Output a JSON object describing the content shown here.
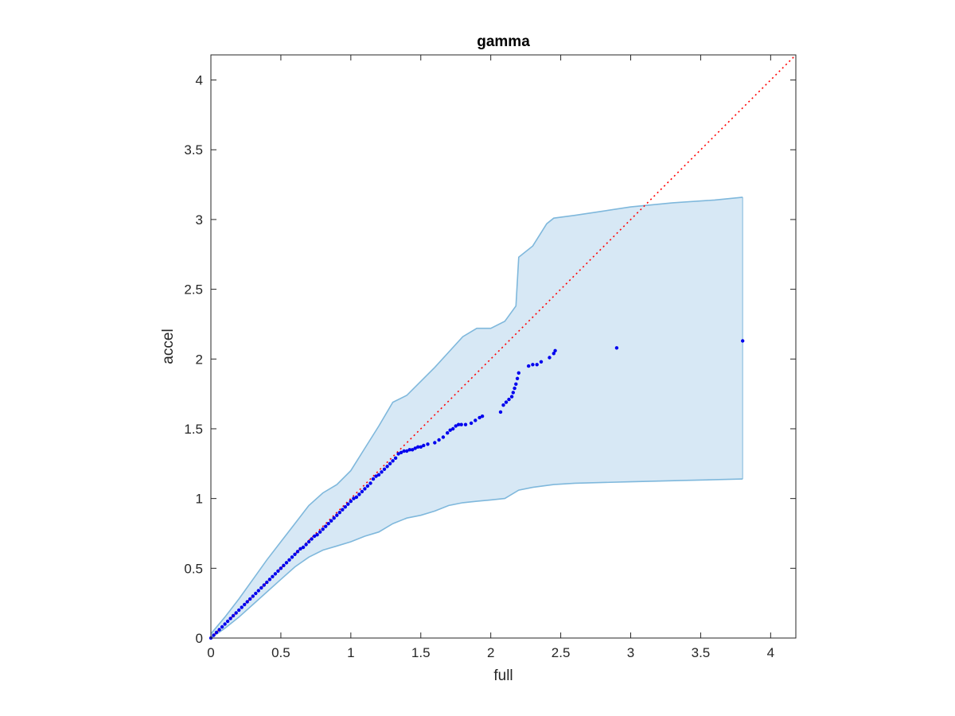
{
  "chart_data": {
    "type": "scatter",
    "title": "gamma",
    "xlabel": "full",
    "ylabel": "accel",
    "xlim": [
      0,
      4.18
    ],
    "ylim": [
      0,
      4.18
    ],
    "xticks": [
      0,
      0.5,
      1,
      1.5,
      2,
      2.5,
      3,
      3.5,
      4
    ],
    "yticks": [
      0,
      0.5,
      1,
      1.5,
      2,
      2.5,
      3,
      3.5,
      4
    ],
    "xtick_labels": [
      "0",
      "0.5",
      "1",
      "1.5",
      "2",
      "2.5",
      "3",
      "3.5",
      "4"
    ],
    "ytick_labels": [
      "0",
      "0.5",
      "1",
      "1.5",
      "2",
      "2.5",
      "3",
      "3.5",
      "4"
    ],
    "grid": false,
    "reference_line": {
      "style": "dotted",
      "color": "#ff0000",
      "x": [
        0,
        4.18
      ],
      "y": [
        0,
        4.18
      ]
    },
    "band": {
      "color": "#bcd9ee",
      "edge_color": "#7fb8dc",
      "upper": [
        [
          0,
          0.03
        ],
        [
          0.1,
          0.15
        ],
        [
          0.2,
          0.28
        ],
        [
          0.3,
          0.42
        ],
        [
          0.4,
          0.56
        ],
        [
          0.5,
          0.69
        ],
        [
          0.6,
          0.82
        ],
        [
          0.7,
          0.95
        ],
        [
          0.8,
          1.04
        ],
        [
          0.9,
          1.1
        ],
        [
          1.0,
          1.2
        ],
        [
          1.1,
          1.36
        ],
        [
          1.2,
          1.52
        ],
        [
          1.3,
          1.69
        ],
        [
          1.4,
          1.74
        ],
        [
          1.5,
          1.84
        ],
        [
          1.6,
          1.94
        ],
        [
          1.7,
          2.05
        ],
        [
          1.8,
          2.16
        ],
        [
          1.9,
          2.22
        ],
        [
          2.0,
          2.22
        ],
        [
          2.1,
          2.27
        ],
        [
          2.18,
          2.38
        ],
        [
          2.2,
          2.73
        ],
        [
          2.3,
          2.81
        ],
        [
          2.4,
          2.97
        ],
        [
          2.45,
          3.01
        ],
        [
          2.6,
          3.03
        ],
        [
          2.8,
          3.06
        ],
        [
          3.0,
          3.09
        ],
        [
          3.3,
          3.12
        ],
        [
          3.6,
          3.14
        ],
        [
          3.8,
          3.16
        ]
      ],
      "lower": [
        [
          0,
          0.0
        ],
        [
          0.1,
          0.07
        ],
        [
          0.2,
          0.15
        ],
        [
          0.3,
          0.24
        ],
        [
          0.4,
          0.33
        ],
        [
          0.5,
          0.42
        ],
        [
          0.6,
          0.51
        ],
        [
          0.7,
          0.58
        ],
        [
          0.8,
          0.63
        ],
        [
          0.9,
          0.66
        ],
        [
          1.0,
          0.69
        ],
        [
          1.1,
          0.73
        ],
        [
          1.2,
          0.76
        ],
        [
          1.3,
          0.82
        ],
        [
          1.4,
          0.86
        ],
        [
          1.5,
          0.88
        ],
        [
          1.6,
          0.91
        ],
        [
          1.7,
          0.95
        ],
        [
          1.8,
          0.97
        ],
        [
          1.9,
          0.98
        ],
        [
          2.0,
          0.99
        ],
        [
          2.1,
          1.0
        ],
        [
          2.2,
          1.06
        ],
        [
          2.3,
          1.08
        ],
        [
          2.45,
          1.1
        ],
        [
          2.6,
          1.11
        ],
        [
          3.0,
          1.12
        ],
        [
          3.4,
          1.13
        ],
        [
          3.8,
          1.14
        ]
      ]
    },
    "series": [
      {
        "color": "#0000ee",
        "x": [
          0.0,
          0.02,
          0.04,
          0.06,
          0.08,
          0.1,
          0.12,
          0.14,
          0.16,
          0.18,
          0.2,
          0.22,
          0.24,
          0.26,
          0.28,
          0.3,
          0.32,
          0.34,
          0.36,
          0.38,
          0.4,
          0.42,
          0.44,
          0.46,
          0.48,
          0.5,
          0.52,
          0.54,
          0.56,
          0.58,
          0.6,
          0.62,
          0.64,
          0.66,
          0.68,
          0.7,
          0.72,
          0.74,
          0.76,
          0.78,
          0.8,
          0.82,
          0.84,
          0.86,
          0.88,
          0.9,
          0.92,
          0.94,
          0.96,
          0.98,
          1.0,
          1.02,
          1.04,
          1.06,
          1.08,
          1.1,
          1.12,
          1.14,
          1.16,
          1.18,
          1.2,
          1.22,
          1.24,
          1.26,
          1.28,
          1.3,
          1.32,
          1.34,
          1.36,
          1.38,
          1.4,
          1.42,
          1.44,
          1.46,
          1.48,
          1.5,
          1.52,
          1.55,
          1.6,
          1.63,
          1.66,
          1.69,
          1.71,
          1.73,
          1.75,
          1.77,
          1.79,
          1.82,
          1.86,
          1.89,
          1.92,
          1.94,
          2.07,
          2.09,
          2.11,
          2.13,
          2.15,
          2.16,
          2.17,
          2.18,
          2.19,
          2.2,
          2.27,
          2.3,
          2.33,
          2.36,
          2.42,
          2.45,
          2.46,
          2.9,
          3.8
        ],
        "y": [
          0.0,
          0.02,
          0.04,
          0.06,
          0.08,
          0.1,
          0.12,
          0.14,
          0.16,
          0.18,
          0.2,
          0.22,
          0.24,
          0.26,
          0.28,
          0.3,
          0.32,
          0.34,
          0.36,
          0.38,
          0.4,
          0.42,
          0.44,
          0.46,
          0.48,
          0.5,
          0.52,
          0.54,
          0.56,
          0.58,
          0.6,
          0.62,
          0.64,
          0.65,
          0.67,
          0.69,
          0.71,
          0.73,
          0.74,
          0.76,
          0.78,
          0.8,
          0.82,
          0.84,
          0.86,
          0.88,
          0.9,
          0.92,
          0.94,
          0.96,
          0.98,
          1.0,
          1.01,
          1.03,
          1.05,
          1.07,
          1.09,
          1.11,
          1.14,
          1.16,
          1.17,
          1.19,
          1.21,
          1.23,
          1.25,
          1.27,
          1.29,
          1.32,
          1.33,
          1.34,
          1.34,
          1.35,
          1.35,
          1.36,
          1.37,
          1.37,
          1.38,
          1.39,
          1.4,
          1.42,
          1.44,
          1.47,
          1.49,
          1.5,
          1.52,
          1.53,
          1.53,
          1.53,
          1.54,
          1.56,
          1.58,
          1.59,
          1.62,
          1.67,
          1.69,
          1.71,
          1.73,
          1.76,
          1.79,
          1.82,
          1.86,
          1.9,
          1.95,
          1.96,
          1.96,
          1.98,
          2.01,
          2.04,
          2.06,
          2.08,
          2.13
        ]
      }
    ]
  }
}
